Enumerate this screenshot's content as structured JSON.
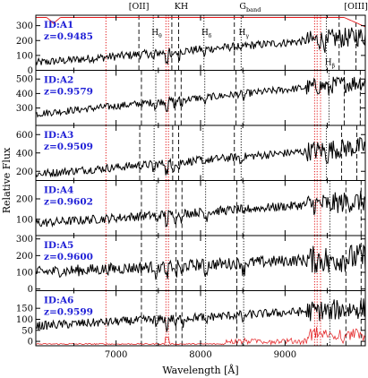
{
  "chart_data": {
    "type": "line",
    "ylabel": "Relative Flux",
    "xlabel": "Wavelength [Å]",
    "xlim": [
      6050,
      9950
    ],
    "x_ticks": [
      7000,
      8000,
      9000
    ],
    "top_labels": [
      {
        "text": "[OII]",
        "x": 7150
      },
      {
        "text": "KH",
        "x": 7690
      },
      {
        "text": "G",
        "sub": "band",
        "x": 8460
      },
      {
        "text": "[OIII]",
        "x": 9700
      }
    ],
    "red_dotted_lines": [
      6880,
      7590,
      7620,
      9350,
      9380,
      9420
    ],
    "panels": [
      {
        "id_label": "ID:A1",
        "z_label": "z=0.9485",
        "ylim": [
          0,
          370
        ],
        "yticks": [
          0,
          100,
          200,
          300
        ],
        "flux_start": 50,
        "flux_end": 230,
        "noise": 28,
        "sky_curve": true,
        "lines": [
          {
            "x": 7270,
            "name": "OII",
            "style": "dash"
          },
          {
            "x": 7440,
            "name": "H",
            "sub": "θ",
            "style": "dot"
          },
          {
            "x": 7660,
            "name": "K",
            "style": "dash"
          },
          {
            "x": 7740,
            "name": "H",
            "style": "dash"
          },
          {
            "x": 8040,
            "name": "H",
            "sub": "δ",
            "style": "dot"
          },
          {
            "x": 8400,
            "name": "G",
            "style": "dash"
          },
          {
            "x": 8480,
            "name": "H",
            "sub": "γ",
            "style": "dot"
          },
          {
            "x": 9490,
            "name": "H",
            "sub": "β",
            "style": "dot"
          },
          {
            "x": 9640,
            "name": "OIII",
            "style": "dash"
          },
          {
            "x": 9840,
            "name": "OIII",
            "style": "dash"
          }
        ],
        "line_labels": [
          {
            "text": "H",
            "sub": "θ",
            "x": 7420,
            "row": "top"
          },
          {
            "text": "H",
            "sub": "δ",
            "x": 8010,
            "row": "top"
          },
          {
            "text": "H",
            "sub": "γ",
            "x": 8450,
            "row": "top"
          },
          {
            "text": "H",
            "sub": "β",
            "x": 9470,
            "row": "bottom"
          }
        ]
      },
      {
        "id_label": "ID:A2",
        "z_label": "z=0.9579",
        "ylim": [
          180,
          560
        ],
        "yticks": [
          300,
          400,
          500
        ],
        "flux_start": 260,
        "flux_end": 480,
        "noise": 25,
        "sky_curve": false,
        "lines": [
          {
            "x": 7300,
            "name": "OII",
            "style": "dash"
          },
          {
            "x": 7470,
            "name": "H",
            "style": "dot"
          },
          {
            "x": 7700,
            "name": "K",
            "style": "dash"
          },
          {
            "x": 7770,
            "name": "H",
            "style": "dash"
          },
          {
            "x": 8050,
            "name": "H",
            "style": "dot"
          },
          {
            "x": 8420,
            "name": "G",
            "style": "dash"
          },
          {
            "x": 8510,
            "name": "H",
            "style": "dot"
          },
          {
            "x": 9520,
            "name": "H",
            "style": "dot"
          },
          {
            "x": 9700,
            "name": "OIII",
            "style": "dash"
          },
          {
            "x": 9890,
            "name": "OIII",
            "style": "dash"
          }
        ],
        "line_labels": []
      },
      {
        "id_label": "ID:A3",
        "z_label": "z=0.9509",
        "ylim": [
          100,
          700
        ],
        "yticks": [
          200,
          400,
          600
        ],
        "flux_start": 170,
        "flux_end": 470,
        "noise": 45,
        "sky_curve": false,
        "lines": [
          {
            "x": 7280,
            "name": "OII",
            "style": "dash"
          },
          {
            "x": 7450,
            "name": "H",
            "style": "dot"
          },
          {
            "x": 7670,
            "name": "K",
            "style": "dash"
          },
          {
            "x": 7740,
            "name": "H",
            "style": "dash"
          },
          {
            "x": 8030,
            "name": "H",
            "style": "dot"
          },
          {
            "x": 8400,
            "name": "G",
            "style": "dash"
          },
          {
            "x": 8480,
            "name": "H",
            "style": "dot"
          },
          {
            "x": 9490,
            "name": "H",
            "style": "dot"
          },
          {
            "x": 9670,
            "name": "OIII",
            "style": "dash"
          },
          {
            "x": 9850,
            "name": "OIII",
            "style": "dash"
          }
        ],
        "line_labels": []
      },
      {
        "id_label": "ID:A4",
        "z_label": "z=0.9602",
        "ylim": [
          20,
          290
        ],
        "yticks": [
          100,
          200
        ],
        "flux_start": 80,
        "flux_end": 190,
        "noise": 22,
        "sky_curve": false,
        "lines": [
          {
            "x": 7300,
            "name": "OII",
            "style": "dash"
          },
          {
            "x": 7480,
            "name": "H",
            "style": "dot"
          },
          {
            "x": 7710,
            "name": "K",
            "style": "dash"
          },
          {
            "x": 7780,
            "name": "H",
            "style": "dash"
          },
          {
            "x": 8060,
            "name": "H",
            "style": "dot"
          },
          {
            "x": 8430,
            "name": "G",
            "style": "dash"
          },
          {
            "x": 8510,
            "name": "H",
            "style": "dot"
          },
          {
            "x": 9530,
            "name": "H",
            "style": "dot"
          },
          {
            "x": 9720,
            "name": "OIII",
            "style": "dash"
          },
          {
            "x": 9900,
            "name": "OIII",
            "style": "dash"
          }
        ],
        "line_labels": []
      },
      {
        "id_label": "ID:A5",
        "z_label": "z=0.9600",
        "ylim": [
          -10,
          320
        ],
        "yticks": [
          0,
          100,
          200,
          300
        ],
        "flux_start": 100,
        "flux_end": 190,
        "noise": 35,
        "sky_curve": false,
        "lines": [
          {
            "x": 7300,
            "name": "OII",
            "style": "dash"
          },
          {
            "x": 7480,
            "name": "H",
            "style": "dot"
          },
          {
            "x": 7710,
            "name": "K",
            "style": "dash"
          },
          {
            "x": 7780,
            "name": "H",
            "style": "dash"
          },
          {
            "x": 8060,
            "name": "H",
            "style": "dot"
          },
          {
            "x": 8430,
            "name": "G",
            "style": "dash"
          },
          {
            "x": 8510,
            "name": "H",
            "style": "dot"
          },
          {
            "x": 9530,
            "name": "H",
            "style": "dot"
          },
          {
            "x": 9720,
            "name": "OIII",
            "style": "dash"
          },
          {
            "x": 9900,
            "name": "OIII",
            "style": "dash"
          }
        ],
        "line_labels": []
      },
      {
        "id_label": "ID:A6",
        "z_label": "z=0.9599",
        "ylim": [
          -20,
          230
        ],
        "yticks": [
          0,
          50,
          100,
          150
        ],
        "flux_start": 70,
        "flux_end": 150,
        "noise": 20,
        "sky_spectrum": true,
        "lines": [
          {
            "x": 7300,
            "name": "OII",
            "style": "dash"
          },
          {
            "x": 7480,
            "name": "H",
            "style": "dot"
          },
          {
            "x": 7710,
            "name": "K",
            "style": "dash"
          },
          {
            "x": 7780,
            "name": "H",
            "style": "dash"
          },
          {
            "x": 8060,
            "name": "H",
            "style": "dot"
          },
          {
            "x": 8430,
            "name": "G",
            "style": "dash"
          },
          {
            "x": 8510,
            "name": "H",
            "style": "dot"
          },
          {
            "x": 9530,
            "name": "H",
            "style": "dot"
          },
          {
            "x": 9720,
            "name": "OIII",
            "style": "dash"
          },
          {
            "x": 9900,
            "name": "OIII",
            "style": "dash"
          }
        ],
        "line_labels": []
      }
    ],
    "colors": {
      "spectrum": "#000000",
      "sky": "#e31a1c",
      "label": "#1f1fd6",
      "axis": "#000000"
    }
  }
}
